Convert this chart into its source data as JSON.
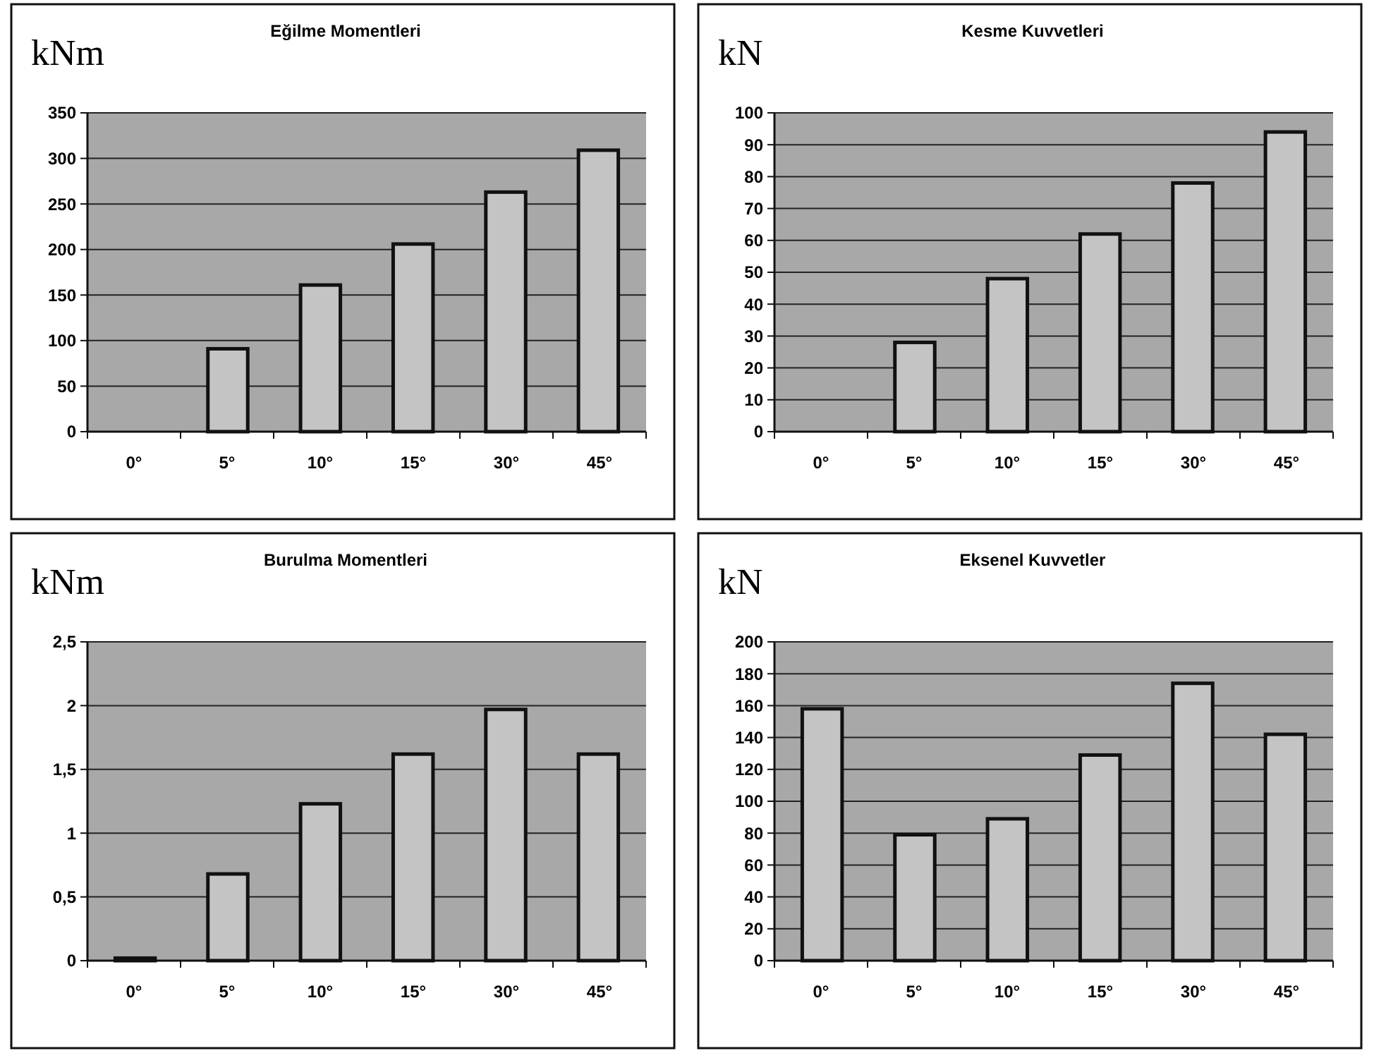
{
  "chart_data": [
    {
      "type": "bar",
      "title": "Eğilme Momentleri",
      "ylabel": "kNm",
      "categories": [
        "0°",
        "5°",
        "10°",
        "15°",
        "30°",
        "45°"
      ],
      "values": [
        0,
        91,
        161,
        206,
        263,
        309
      ],
      "color": "#c4c4c4",
      "ylim": [
        0,
        350
      ],
      "yticks": [
        0,
        50,
        100,
        150,
        200,
        250,
        300,
        350
      ],
      "grid": "y"
    },
    {
      "type": "bar",
      "title": "Kesme Kuvvetleri",
      "ylabel": "kN",
      "categories": [
        "0°",
        "5°",
        "10°",
        "15°",
        "30°",
        "45°"
      ],
      "values": [
        0,
        28,
        48,
        62,
        78,
        94
      ],
      "color": "#c4c4c4",
      "ylim": [
        0,
        100
      ],
      "yticks": [
        0,
        10,
        20,
        30,
        40,
        50,
        60,
        70,
        80,
        90,
        100
      ],
      "grid": "y"
    },
    {
      "type": "bar",
      "title": "Burulma Momentleri",
      "ylabel": "kNm",
      "categories": [
        "0°",
        "5°",
        "10°",
        "15°",
        "30°",
        "45°"
      ],
      "values": [
        0.02,
        0.68,
        1.23,
        1.62,
        1.97,
        1.62
      ],
      "color": "#c4c4c4",
      "ylim": [
        0,
        2.5
      ],
      "yticks": [
        0,
        {
          "value": 0.5,
          "label": "0,5"
        },
        1,
        {
          "value": 1.5,
          "label": "1,5"
        },
        2,
        {
          "value": 2.5,
          "label": "2,5"
        }
      ],
      "grid": "y"
    },
    {
      "type": "bar",
      "title": "Eksenel Kuvvetler",
      "ylabel": "kN",
      "categories": [
        "0°",
        "5°",
        "10°",
        "15°",
        "30°",
        "45°"
      ],
      "values": [
        158,
        79,
        89,
        129,
        174,
        142
      ],
      "color": "#c4c4c4",
      "ylim": [
        0,
        200
      ],
      "yticks": [
        0,
        20,
        40,
        60,
        80,
        100,
        120,
        140,
        160,
        180,
        200
      ],
      "grid": "y"
    }
  ]
}
